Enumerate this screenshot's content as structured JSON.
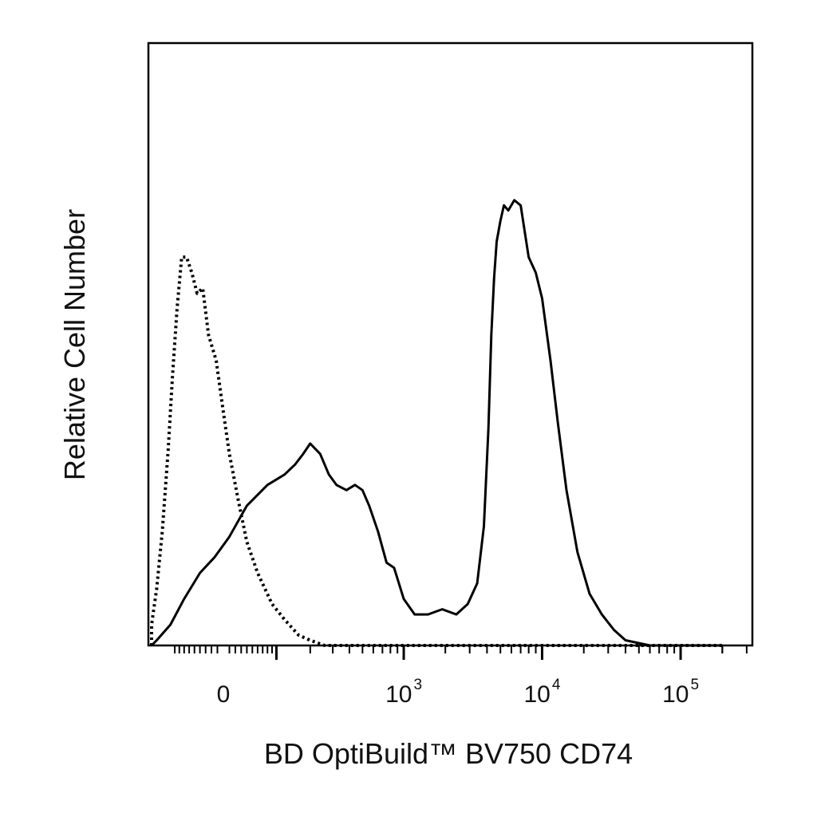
{
  "chart_data": {
    "type": "line",
    "title": "",
    "xlabel": "BD OptiBuild™ BV750 CD74",
    "ylabel": "Relative Cell Number",
    "x_scale": "biexponential",
    "xlim": [
      -200,
      200000
    ],
    "ylim": [
      0,
      100
    ],
    "grid": false,
    "legend": "none",
    "x_ticks": [
      {
        "value": 0,
        "base": "0",
        "exp": ""
      },
      {
        "value": 1000,
        "base": "10",
        "exp": "3"
      },
      {
        "value": 10000,
        "base": "10",
        "exp": "4"
      },
      {
        "value": 100000,
        "base": "10",
        "exp": "5"
      }
    ],
    "series": [
      {
        "style": "solid",
        "color": "#000000",
        "x": [
          -170,
          -135,
          -100,
          -70,
          -40,
          -15,
          10,
          40,
          80,
          120,
          150,
          175,
          200,
          240,
          280,
          320,
          380,
          440,
          500,
          560,
          650,
          750,
          850,
          1000,
          1200,
          1500,
          1900,
          2400,
          2900,
          3400,
          3800,
          4100,
          4300,
          4500,
          4700,
          5000,
          5300,
          5700,
          6300,
          7000,
          8000,
          9000,
          10000,
          11500,
          13000,
          15000,
          18000,
          22000,
          27000,
          33000,
          40000,
          60000,
          100000,
          200000
        ],
        "y": [
          0,
          1,
          4,
          9,
          14,
          17,
          21,
          27,
          31,
          33,
          35,
          37,
          39,
          37,
          33,
          31,
          30,
          31,
          30,
          27,
          22,
          16,
          15,
          9,
          6,
          6,
          7,
          6,
          8,
          12,
          23,
          42,
          60,
          71,
          78,
          82,
          85,
          84,
          86,
          85,
          75,
          72,
          67,
          55,
          43,
          30,
          18,
          10,
          6,
          3,
          1,
          0,
          0,
          0
        ]
      },
      {
        "style": "dotted",
        "color": "#000000",
        "x": [
          -200,
          -175,
          -155,
          -135,
          -120,
          -105,
          -95,
          -85,
          -75,
          -65,
          -55,
          -45,
          -35,
          -25,
          -12,
          0,
          10,
          25,
          40,
          60,
          90,
          120,
          160,
          200,
          260,
          350,
          450,
          1000,
          200000
        ],
        "y": [
          0,
          1,
          4,
          11,
          22,
          38,
          52,
          65,
          75,
          75,
          72,
          68,
          69,
          60,
          55,
          45,
          37,
          28,
          20,
          14,
          8,
          5,
          2,
          1,
          0,
          0,
          0,
          0,
          0
        ]
      }
    ]
  }
}
